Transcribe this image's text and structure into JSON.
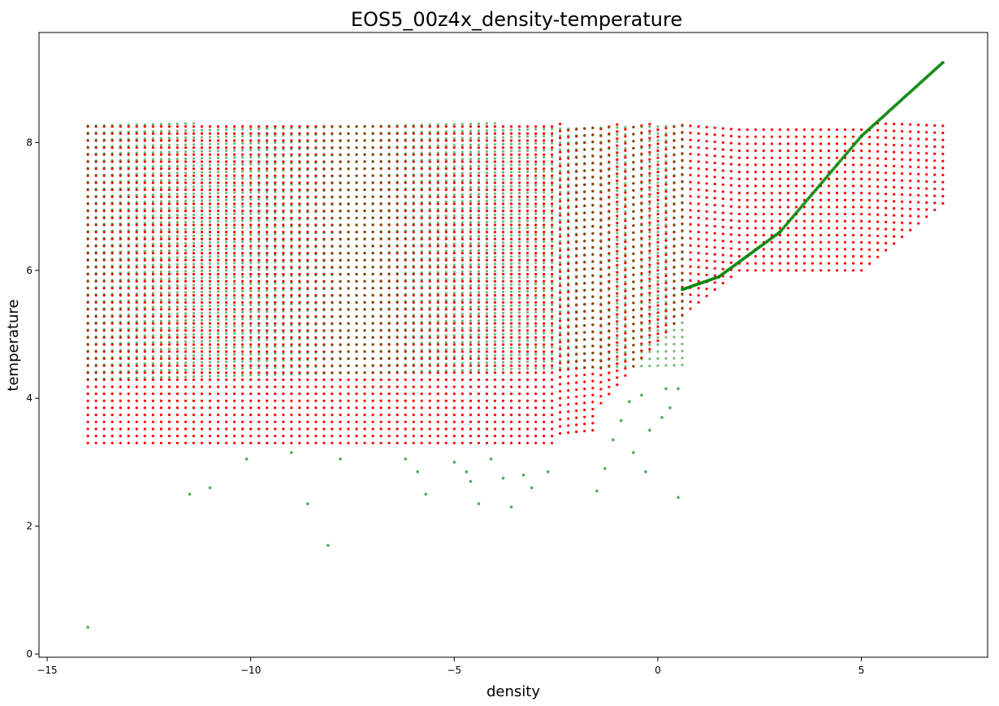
{
  "chart_data": {
    "type": "scatter",
    "title": "EOS5_00z4x_density-temperature",
    "xlabel": "density",
    "ylabel": "temperature",
    "xlim": [
      -15.2,
      8.1
    ],
    "ylim": [
      -0.05,
      9.72
    ],
    "xticks": [
      -15,
      -10,
      -5,
      0,
      5
    ],
    "yticks": [
      0,
      2,
      4,
      6,
      8
    ],
    "grid": false,
    "legend": "none",
    "series": [
      {
        "color": "#ff0000",
        "description_points": "table grid coverage",
        "grid_x_range": [
          -14.0,
          7.0
        ],
        "grid_x_step": 0.2,
        "y_max": 8.3,
        "y_floor_profile": [
          [
            -14.0,
            3.3
          ],
          [
            -2.6,
            3.3
          ],
          [
            -2.4,
            3.45
          ],
          [
            -1.6,
            3.5
          ],
          [
            -1.5,
            3.85
          ],
          [
            -0.6,
            4.5
          ],
          [
            0.6,
            5.3
          ],
          [
            2.0,
            6.0
          ],
          [
            5.0,
            6.0
          ],
          [
            7.0,
            7.05
          ]
        ]
      },
      {
        "color": "#008000",
        "description_points": "data coverage",
        "grid_x_range": [
          -14.0,
          0.6
        ],
        "grid_x_step": 0.2,
        "y_min_band": 4.3,
        "y_max": 8.3,
        "diagonal_line": [
          [
            0.6,
            5.7
          ],
          [
            1.5,
            5.9
          ],
          [
            3.0,
            6.6
          ],
          [
            5.0,
            8.1
          ],
          [
            7.0,
            9.25
          ]
        ],
        "outliers": [
          [
            -14.0,
            0.42
          ],
          [
            -11.5,
            2.5
          ],
          [
            -11.0,
            2.6
          ],
          [
            -10.1,
            3.05
          ],
          [
            -9.0,
            3.15
          ],
          [
            -8.6,
            2.35
          ],
          [
            -8.1,
            1.7
          ],
          [
            -7.8,
            3.05
          ],
          [
            -6.2,
            3.05
          ],
          [
            -5.9,
            2.85
          ],
          [
            -5.7,
            2.5
          ],
          [
            -5.0,
            3.0
          ],
          [
            -4.7,
            2.85
          ],
          [
            -4.6,
            2.7
          ],
          [
            -4.4,
            2.35
          ],
          [
            -4.1,
            3.05
          ],
          [
            -3.8,
            2.75
          ],
          [
            -3.6,
            2.3
          ],
          [
            -3.3,
            2.8
          ],
          [
            -3.1,
            2.6
          ],
          [
            -2.7,
            2.85
          ],
          [
            -1.5,
            2.55
          ],
          [
            -1.3,
            2.9
          ],
          [
            -0.3,
            2.85
          ],
          [
            0.5,
            2.45
          ],
          [
            -0.6,
            3.15
          ],
          [
            -0.2,
            3.5
          ],
          [
            0.1,
            3.7
          ],
          [
            0.3,
            3.85
          ],
          [
            -1.1,
            3.35
          ],
          [
            -0.9,
            3.65
          ],
          [
            -0.7,
            3.95
          ],
          [
            -0.4,
            4.05
          ],
          [
            0.2,
            4.15
          ],
          [
            0.5,
            4.15
          ]
        ]
      }
    ]
  }
}
